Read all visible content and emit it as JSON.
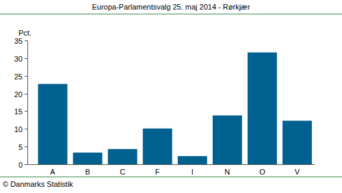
{
  "chart_data": {
    "type": "bar",
    "title": "Europa-Parlamentsvalg 25. maj 2014 - Rørkjær",
    "ylabel": "Pct.",
    "source": "© Danmarks Statistik",
    "categories": [
      "A",
      "B",
      "C",
      "F",
      "I",
      "N",
      "O",
      "V"
    ],
    "values": [
      22.7,
      3.3,
      4.3,
      10.1,
      2.3,
      13.8,
      31.6,
      12.3
    ],
    "color": "#00608f",
    "ylim": [
      0,
      35
    ],
    "yticks": [
      0,
      5,
      10,
      15,
      20,
      25,
      30,
      35
    ],
    "grid": false
  }
}
